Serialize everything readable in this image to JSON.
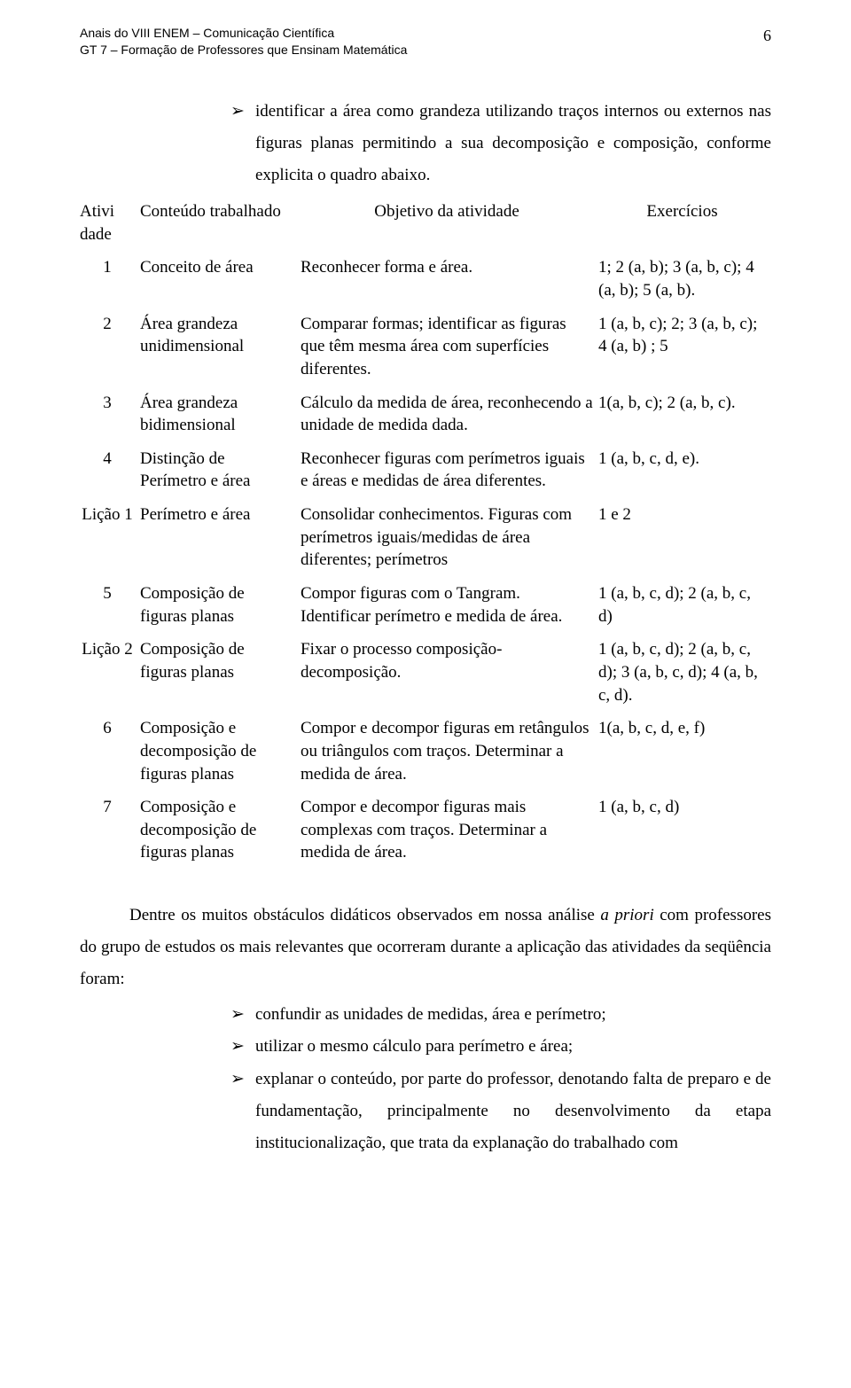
{
  "header": {
    "line1": "Anais do VIII ENEM – Comunicação Científica",
    "line2": "GT 7 – Formação de Professores que Ensinam Matemática",
    "page_no": "6"
  },
  "intro_bullet": {
    "glyph": "➢",
    "text": "identificar a área como grandeza utilizando traços internos ou externos nas figuras planas permitindo a sua decomposição e composição, conforme explicita o quadro abaixo."
  },
  "table": {
    "head": {
      "a": "Ativi dade",
      "b": "Conteúdo trabalhado",
      "c": "Objetivo da atividade",
      "d": "Exercícios"
    },
    "rows": [
      {
        "a": "1",
        "b": "Conceito de área",
        "c": "Reconhecer forma e área.",
        "d": "1; 2 (a, b); 3 (a, b, c); 4 (a, b); 5 (a, b)."
      },
      {
        "a": "2",
        "b": "Área grandeza unidimensional",
        "c": "Comparar formas; identificar as figuras que têm mesma área com superfícies diferentes.",
        "d": "1 (a, b, c); 2; 3 (a, b, c); 4 (a,  b) ; 5"
      },
      {
        "a": "3",
        "b": "Área  grandeza bidimensional",
        "c": "Cálculo da medida de área, reconhecendo a unidade de medida dada.",
        "d": "1(a, b, c); 2 (a, b, c)."
      },
      {
        "a": "4",
        "b": "Distinção de Perímetro e área",
        "c": "Reconhecer figuras com perímetros iguais e áreas e medidas de área diferentes.",
        "d": "1 (a, b, c, d, e)."
      },
      {
        "a": "Lição 1",
        "b": "Perímetro e área",
        "c": "Consolidar conhecimentos. Figuras com perímetros iguais/medidas de área diferentes; perímetros",
        "d": "1 e 2"
      },
      {
        "a": "5",
        "b": "Composição de figuras planas",
        "c": "Compor figuras com o Tangram. Identificar perímetro e medida de área.",
        "d": "1 (a, b, c, d); 2 (a, b, c, d)"
      },
      {
        "a": "Lição 2",
        "b": "Composição de figuras planas",
        "c": "Fixar o processo composição-decomposição.",
        "d": "1 (a, b, c, d); 2 (a, b, c, d); 3 (a, b, c, d); 4 (a, b, c, d)."
      },
      {
        "a": "6",
        "b": "Composição e decomposição de figuras planas",
        "c": "Compor e decompor figuras em retângulos ou triângulos com traços. Determinar a medida de área.",
        "d": "1(a, b, c, d, e, f)"
      },
      {
        "a": "7",
        "b": "Composição e decomposição de figuras planas",
        "c": "Compor e decompor figuras mais complexas com traços. Determinar a medida de área.",
        "d": "1 (a, b, c, d)"
      }
    ]
  },
  "after_text": {
    "p1a": "Dentre os muitos obstáculos didáticos observados em nossa análise ",
    "p1b": "a priori",
    "p1c": " com professores do grupo de estudos os mais relevantes que ocorreram durante a aplicação das atividades da seqüência foram:"
  },
  "lower_bullets": [
    {
      "glyph": "➢",
      "text": "confundir as unidades de medidas, área e perímetro;"
    },
    {
      "glyph": "➢",
      "text": " utilizar o mesmo cálculo para perímetro e área;"
    },
    {
      "glyph": "➢",
      "text": "explanar o conteúdo, por parte do professor, denotando falta de preparo e de fundamentação, principalmente no desenvolvimento da etapa institucionalização, que trata da explanação do trabalhado com"
    }
  ]
}
